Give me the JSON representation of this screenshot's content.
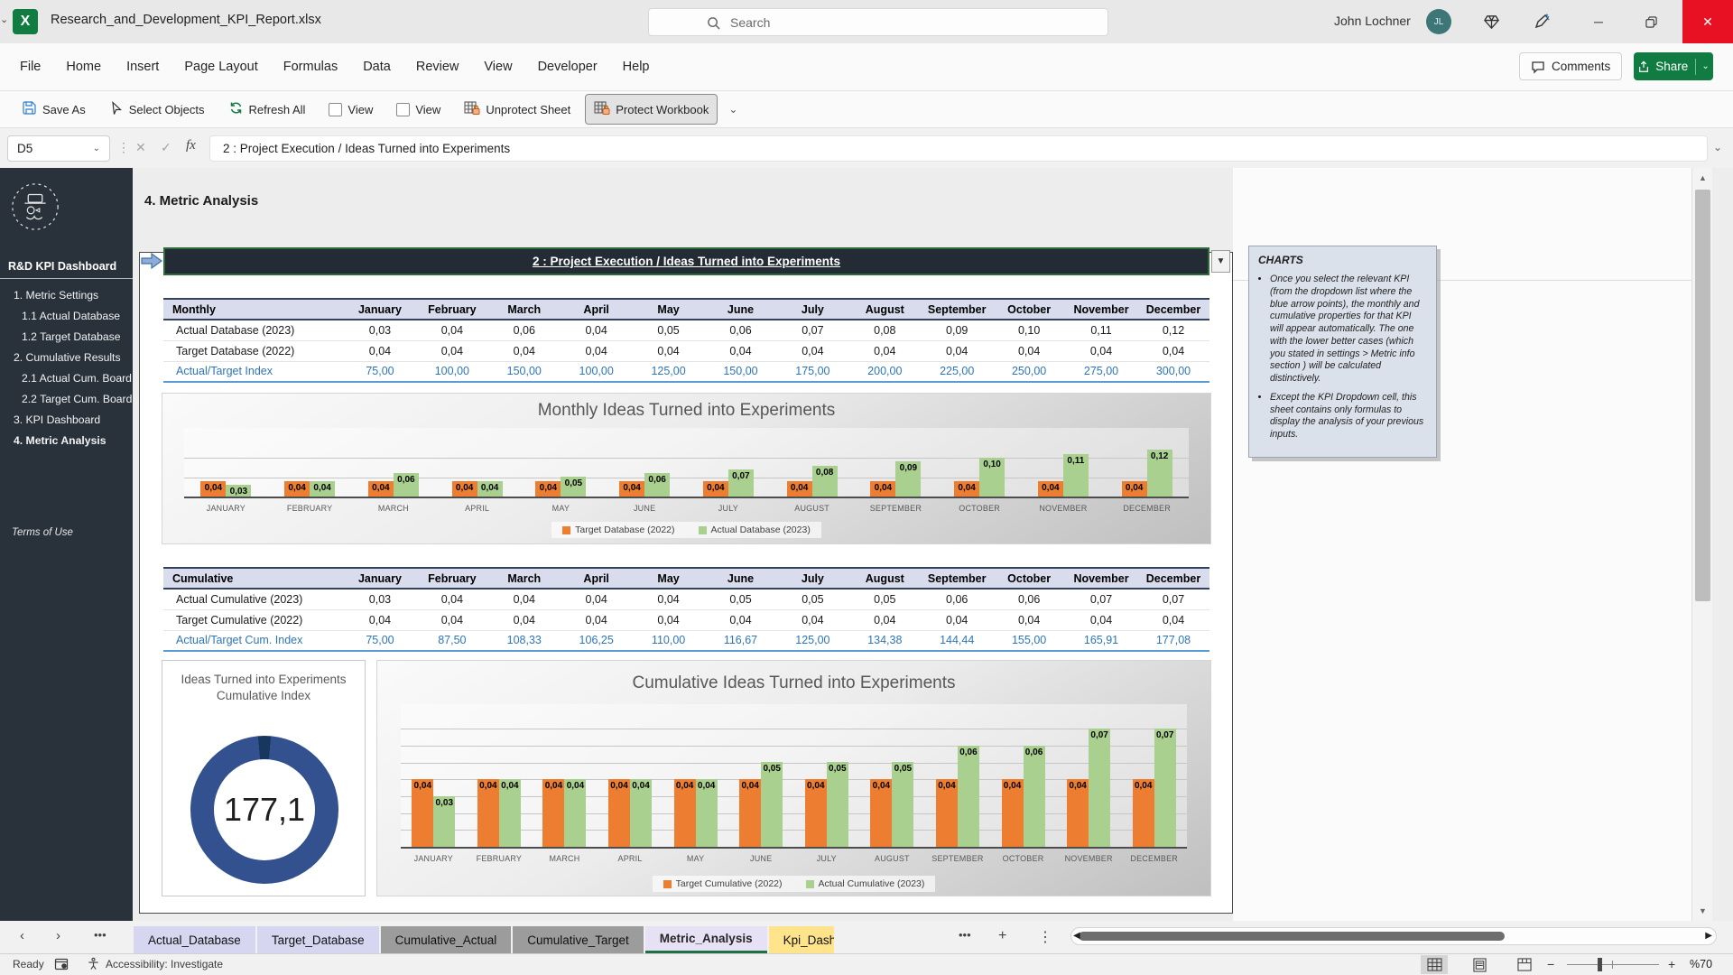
{
  "app": {
    "title": "Research_and_Development_KPI_Report.xlsx",
    "search_placeholder": "Search",
    "user_name": "John Lochner",
    "user_initials": "JL"
  },
  "menu": {
    "items": [
      "File",
      "Home",
      "Insert",
      "Page Layout",
      "Formulas",
      "Data",
      "Review",
      "View",
      "Developer",
      "Help"
    ],
    "comments_label": "Comments",
    "share_label": "Share"
  },
  "quick_toolbar": [
    {
      "label": "Save As",
      "icon": "save-as",
      "type": "button"
    },
    {
      "label": "Select Objects",
      "icon": "cursor",
      "type": "button"
    },
    {
      "label": "Refresh All",
      "icon": "refresh",
      "type": "button"
    },
    {
      "label": "View",
      "icon": "checkbox",
      "type": "checkbox"
    },
    {
      "label": "View",
      "icon": "checkbox",
      "type": "checkbox"
    },
    {
      "label": "Unprotect Sheet",
      "icon": "unprotect-sheet",
      "type": "button"
    },
    {
      "label": "Protect Workbook",
      "icon": "protect-workbook",
      "type": "button",
      "pressed": true
    }
  ],
  "formula_bar": {
    "name_box": "D5",
    "content": "2 : Project Execution / Ideas Turned into Experiments"
  },
  "sidebar": {
    "brand": "R&D KPI Dashboard",
    "items": [
      {
        "label": "1. Metric Settings",
        "indent": 0,
        "active": false
      },
      {
        "label": "1.1 Actual Database",
        "indent": 1,
        "active": false
      },
      {
        "label": "1.2 Target Database",
        "indent": 1,
        "active": false
      },
      {
        "label": "2. Cumulative Results",
        "indent": 0,
        "active": false
      },
      {
        "label": "2.1 Actual Cum. Board",
        "indent": 1,
        "active": false
      },
      {
        "label": "2.2 Target Cum. Board",
        "indent": 1,
        "active": false
      },
      {
        "label": "3. KPI Dashboard",
        "indent": 0,
        "active": false
      },
      {
        "label": "4. Metric Analysis",
        "indent": 0,
        "active": true
      }
    ],
    "footer": "Terms of Use"
  },
  "page": {
    "heading": "4. Metric Analysis",
    "kpi_selector": "2 : Project Execution / Ideas Turned into Experiments"
  },
  "monthly_table": {
    "corner": "Monthly",
    "months": [
      "January",
      "February",
      "March",
      "April",
      "May",
      "June",
      "July",
      "August",
      "September",
      "October",
      "November",
      "December"
    ],
    "rows": [
      {
        "label": "Actual Database (2023)",
        "style": "normal",
        "values": [
          0.03,
          0.04,
          0.06,
          0.04,
          0.05,
          0.06,
          0.07,
          0.08,
          0.09,
          0.1,
          0.11,
          0.12
        ]
      },
      {
        "label": "Target Database (2022)",
        "style": "normal",
        "values": [
          0.04,
          0.04,
          0.04,
          0.04,
          0.04,
          0.04,
          0.04,
          0.04,
          0.04,
          0.04,
          0.04,
          0.04
        ]
      },
      {
        "label": "Actual/Target Index",
        "style": "index",
        "values": [
          75.0,
          100.0,
          150.0,
          100.0,
          125.0,
          150.0,
          175.0,
          200.0,
          225.0,
          250.0,
          275.0,
          300.0
        ]
      }
    ]
  },
  "cumulative_table": {
    "corner": "Cumulative",
    "months": [
      "January",
      "February",
      "March",
      "April",
      "May",
      "June",
      "July",
      "August",
      "September",
      "October",
      "November",
      "December"
    ],
    "rows": [
      {
        "label": "Actual Cumulative (2023)",
        "style": "normal",
        "values": [
          0.03,
          0.04,
          0.04,
          0.04,
          0.04,
          0.05,
          0.05,
          0.05,
          0.06,
          0.06,
          0.07,
          0.07
        ]
      },
      {
        "label": "Target Cumulative (2022)",
        "style": "normal",
        "values": [
          0.04,
          0.04,
          0.04,
          0.04,
          0.04,
          0.04,
          0.04,
          0.04,
          0.04,
          0.04,
          0.04,
          0.04
        ]
      },
      {
        "label": "Actual/Target Cum. Index",
        "style": "index",
        "values": [
          75.0,
          87.5,
          108.33,
          106.25,
          110.0,
          116.67,
          125.0,
          134.38,
          144.44,
          155.0,
          165.91,
          177.08
        ]
      }
    ]
  },
  "chart_data": [
    {
      "type": "bar",
      "title": "Monthly Ideas Turned into Experiments",
      "categories": [
        "JANUARY",
        "FEBRUARY",
        "MARCH",
        "APRIL",
        "MAY",
        "JUNE",
        "JULY",
        "AUGUST",
        "SEPTEMBER",
        "OCTOBER",
        "NOVEMBER",
        "DECEMBER"
      ],
      "series": [
        {
          "name": "Target Database (2022)",
          "color": "#ED7D31",
          "values": [
            0.04,
            0.04,
            0.04,
            0.04,
            0.04,
            0.04,
            0.04,
            0.04,
            0.04,
            0.04,
            0.04,
            0.04
          ]
        },
        {
          "name": "Actual Database (2023)",
          "color": "#A9D08E",
          "values": [
            0.03,
            0.04,
            0.06,
            0.04,
            0.05,
            0.06,
            0.07,
            0.08,
            0.09,
            0.1,
            0.11,
            0.12
          ]
        }
      ],
      "ylim": [
        0,
        0.14
      ],
      "gridlines": [
        0.05,
        0.1
      ],
      "legend_position": "bottom",
      "data_labels": true
    },
    {
      "type": "bar",
      "title": "Cumulative Ideas Turned into Experiments",
      "categories": [
        "JANUARY",
        "FEBRUARY",
        "MARCH",
        "APRIL",
        "MAY",
        "JUNE",
        "JULY",
        "AUGUST",
        "SEPTEMBER",
        "OCTOBER",
        "NOVEMBER",
        "DECEMBER"
      ],
      "series": [
        {
          "name": "Target Cumulative (2022)",
          "color": "#ED7D31",
          "values": [
            0.04,
            0.04,
            0.04,
            0.04,
            0.04,
            0.04,
            0.04,
            0.04,
            0.04,
            0.04,
            0.04,
            0.04
          ]
        },
        {
          "name": "Actual Cumulative (2023)",
          "color": "#A9D08E",
          "values": [
            0.03,
            0.04,
            0.04,
            0.04,
            0.04,
            0.05,
            0.05,
            0.05,
            0.06,
            0.06,
            0.07,
            0.07
          ]
        }
      ],
      "ylim": [
        0,
        0.075
      ],
      "gridlines": [
        0.01,
        0.02,
        0.03,
        0.04,
        0.05,
        0.06,
        0.07
      ],
      "legend_position": "bottom",
      "data_labels": true
    },
    {
      "type": "donut",
      "title": "Ideas Turned into Experiments Cumulative Index",
      "value": 177.1,
      "value_label": "177,1",
      "color": "#33518F"
    }
  ],
  "notes_panel": {
    "title": "CHARTS",
    "bullets": [
      "Once you select the relevant KPI (from the dropdown list where the blue arrow points), the monthly and cumulative properties for that KPI will appear automatically. The one with the lower better cases (which you stated in settings > Metric info section ) will be calculated distinctively.",
      "Except the KPI Dropdown cell, this sheet contains only formulas to display the analysis of your previous inputs."
    ]
  },
  "sheet_tabs": {
    "tabs": [
      {
        "label": "Actual_Database",
        "color": "#D6D6F0",
        "active": false,
        "truncated": false
      },
      {
        "label": "Target_Database",
        "color": "#D6D6F0",
        "active": false,
        "truncated": false
      },
      {
        "label": "Cumulative_Actual",
        "color": "#9C9C9C",
        "active": false,
        "truncated": false
      },
      {
        "label": "Cumulative_Target",
        "color": "#9C9C9C",
        "active": false,
        "truncated": false
      },
      {
        "label": "Metric_Analysis",
        "color": "#E7E1F5",
        "active": true,
        "truncated": false
      },
      {
        "label": "Kpi_Dash",
        "color": "#FFE48C",
        "active": false,
        "truncated": true
      }
    ]
  },
  "status_bar": {
    "ready": "Ready",
    "accessibility": "Accessibility: Investigate",
    "zoom": "%70"
  }
}
